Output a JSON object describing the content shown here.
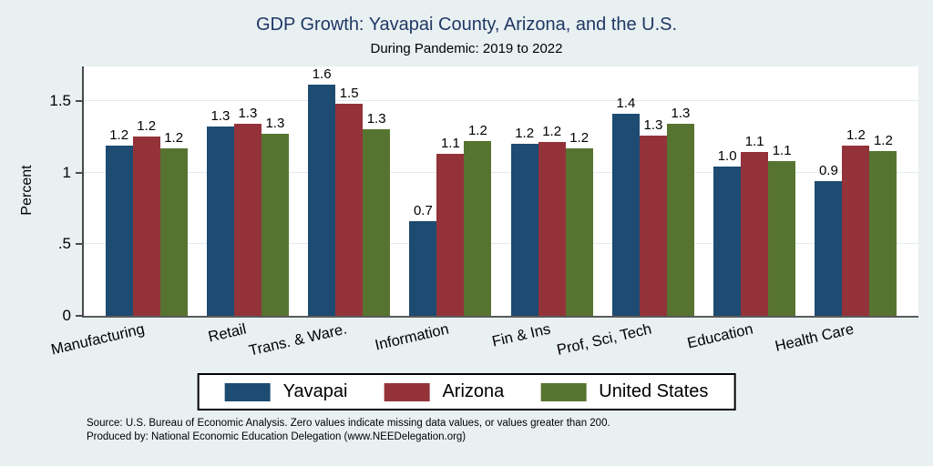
{
  "title": "GDP Growth: Yavapai County, Arizona, and the U.S.",
  "subtitle": "During Pandemic: 2019 to 2022",
  "footer": {
    "line1": "Source: U.S. Bureau of Economic Analysis. Zero values indicate missing data values, or values greater than 200.",
    "line2": "Produced by: National Economic Education Delegation (www.NEEDelegation.org)"
  },
  "colors": {
    "background": "#e9f0f2",
    "plot_background": "#ffffff",
    "gridline": "#dfeaf0",
    "axis": "#4a4a4a",
    "title_text": "#1f3864"
  },
  "chart_data": {
    "type": "bar",
    "title": "GDP Growth: Yavapai County, Arizona, and the U.S.",
    "subtitle": "During Pandemic: 2019 to 2022",
    "xlabel": "",
    "ylabel": "Percent",
    "ylim": [
      0,
      1.74
    ],
    "yticks": [
      0,
      0.5,
      1,
      1.5
    ],
    "ytick_labels": [
      "0",
      ".5",
      "1",
      "1.5"
    ],
    "grid": true,
    "legend_position": "bottom",
    "categories": [
      "Manufacturing",
      "Retail",
      "Trans. & Ware.",
      "Information",
      "Fin & Ins",
      "Prof, Sci, Tech",
      "Education",
      "Health Care"
    ],
    "series": [
      {
        "name": "Yavapai",
        "color": "#1d4b71",
        "values": [
          1.2,
          1.3,
          1.6,
          0.7,
          1.2,
          1.4,
          1.0,
          0.9
        ],
        "bar_heights": [
          1.19,
          1.32,
          1.61,
          0.66,
          1.2,
          1.41,
          1.04,
          0.94
        ]
      },
      {
        "name": "Arizona",
        "color": "#933339",
        "values": [
          1.2,
          1.3,
          1.5,
          1.1,
          1.2,
          1.3,
          1.1,
          1.2
        ],
        "bar_heights": [
          1.25,
          1.34,
          1.48,
          1.13,
          1.21,
          1.26,
          1.14,
          1.19
        ]
      },
      {
        "name": "United States",
        "color": "#567430",
        "values": [
          1.2,
          1.3,
          1.3,
          1.2,
          1.2,
          1.3,
          1.1,
          1.2
        ],
        "bar_heights": [
          1.17,
          1.27,
          1.3,
          1.22,
          1.17,
          1.34,
          1.08,
          1.15
        ]
      }
    ]
  }
}
